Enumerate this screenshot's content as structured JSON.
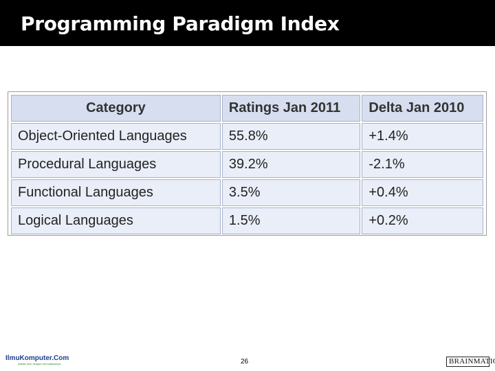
{
  "slide": {
    "title": "Programming Paradigm Index",
    "page_number": "26"
  },
  "table": {
    "headers": [
      "Category",
      "Ratings Jan 2011",
      "Delta Jan 2010"
    ],
    "rows": [
      [
        "Object-Oriented Languages",
        "55.8%",
        "+1.4%"
      ],
      [
        "Procedural Languages",
        "39.2%",
        "-2.1%"
      ],
      [
        "Functional Languages",
        "3.5%",
        "+0.4%"
      ],
      [
        "Logical Languages",
        "1.5%",
        "+0.2%"
      ]
    ]
  },
  "footer": {
    "left_logo": "IlmuKomputer.Com",
    "left_logo_tagline": "Ikatlah ilmu dengan menuliskannya",
    "right_logo": "BRAINMATICS"
  },
  "colors": {
    "title_bar": "#000000",
    "title_text": "#ffffff",
    "header_cell": "#d6deef",
    "body_cell": "#eaeef8",
    "cell_border": "#a7b1c7"
  }
}
